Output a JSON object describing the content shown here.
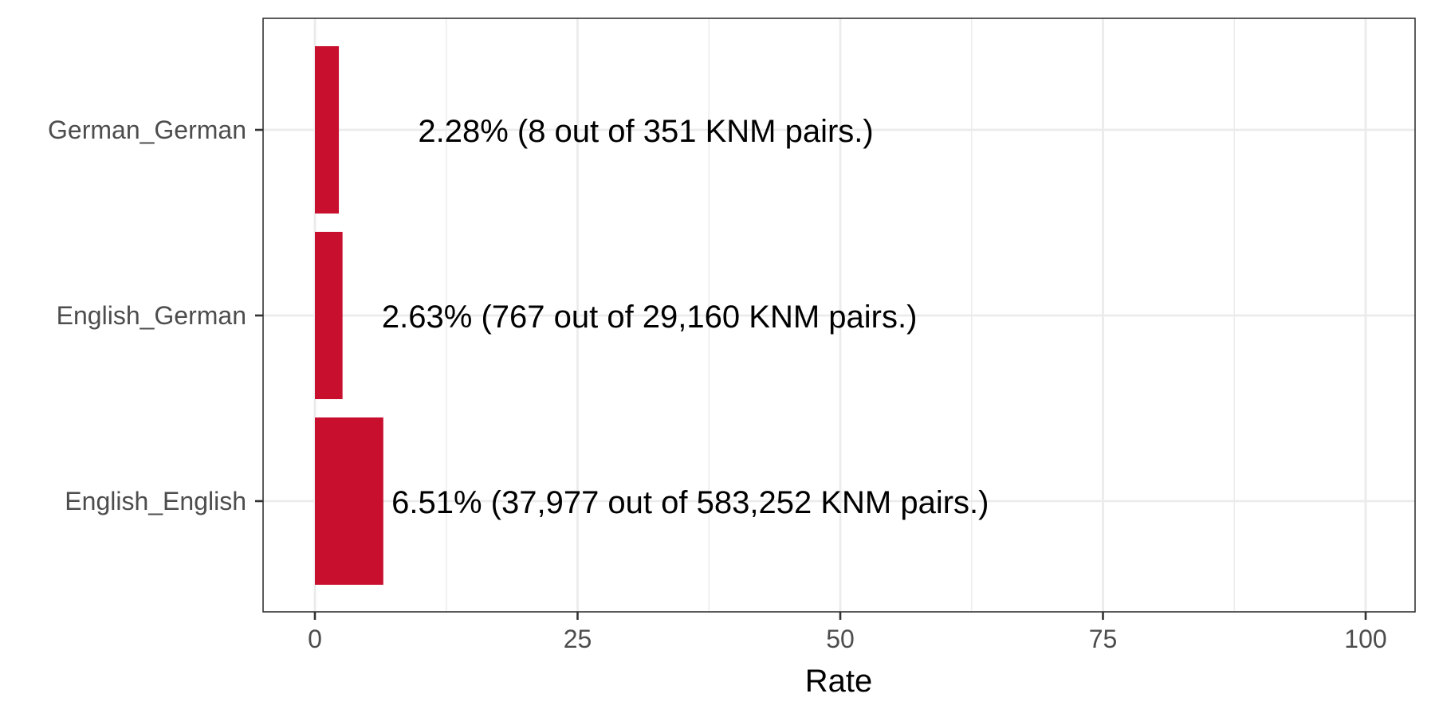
{
  "chart_data": {
    "type": "bar",
    "orientation": "horizontal",
    "categories": [
      "German_German",
      "English_German",
      "English_English"
    ],
    "values": [
      2.28,
      2.63,
      6.51
    ],
    "data_labels": [
      "2.28% (8 out of 351 KNM pairs.)",
      "2.63% (767 out of 29,160 KNM pairs.)",
      "6.51% (37,977 out of 583,252 KNM pairs.)"
    ],
    "title": "",
    "xlabel": "Rate",
    "ylabel": "",
    "xlim": [
      0,
      100
    ],
    "x_ticks": [
      0,
      25,
      50,
      75,
      100
    ],
    "x_tick_labels": [
      "0",
      "25",
      "50",
      "75",
      "100"
    ],
    "grid": true,
    "legend": "none",
    "bar_color": "#C8102E"
  }
}
